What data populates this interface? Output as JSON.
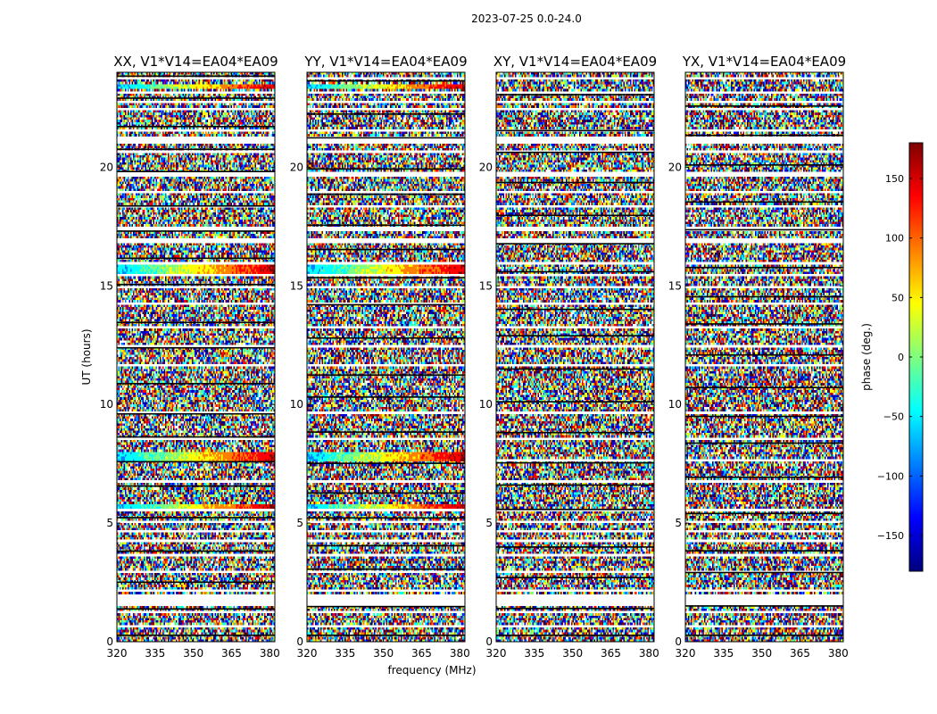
{
  "page": {
    "suptitle": "2023-07-25 0.0-24.0"
  },
  "chart_data": {
    "type": "heatmap",
    "panels": [
      {
        "title": "XX, V1*V14=EA04*EA09"
      },
      {
        "title": "YY, V1*V14=EA04*EA09"
      },
      {
        "title": "XY, V1*V14=EA04*EA09"
      },
      {
        "title": "YX, V1*V14=EA04*EA09"
      }
    ],
    "xlabel": "frequency (MHz)",
    "ylabel": "UT (hours)",
    "xlim": [
      320,
      382
    ],
    "ylim": [
      0,
      24
    ],
    "xticks": [
      320,
      335,
      350,
      365,
      380
    ],
    "xtick_labels": [
      "320",
      "335",
      "350",
      "365",
      "380"
    ],
    "yticks": [
      0,
      5,
      10,
      15,
      20
    ],
    "ytick_labels": [
      "0",
      "5",
      "10",
      "15",
      "20"
    ],
    "value_description": "phase noise (random) with flagged blank rows",
    "colorbar": {
      "label": "phase (deg.)",
      "range": [
        -180,
        180
      ],
      "ticks": [
        150,
        100,
        50,
        0,
        -50,
        -100,
        -150
      ],
      "tick_labels": [
        "150",
        "100",
        "50",
        "0",
        "−50",
        "−100",
        "−150"
      ],
      "colormap": "jet"
    },
    "colors": {
      "jet": [
        "#00007f",
        "#0000ff",
        "#007fff",
        "#00ffff",
        "#7fff7f",
        "#ffff00",
        "#ff7f00",
        "#ff0000",
        "#7f0000"
      ]
    }
  }
}
